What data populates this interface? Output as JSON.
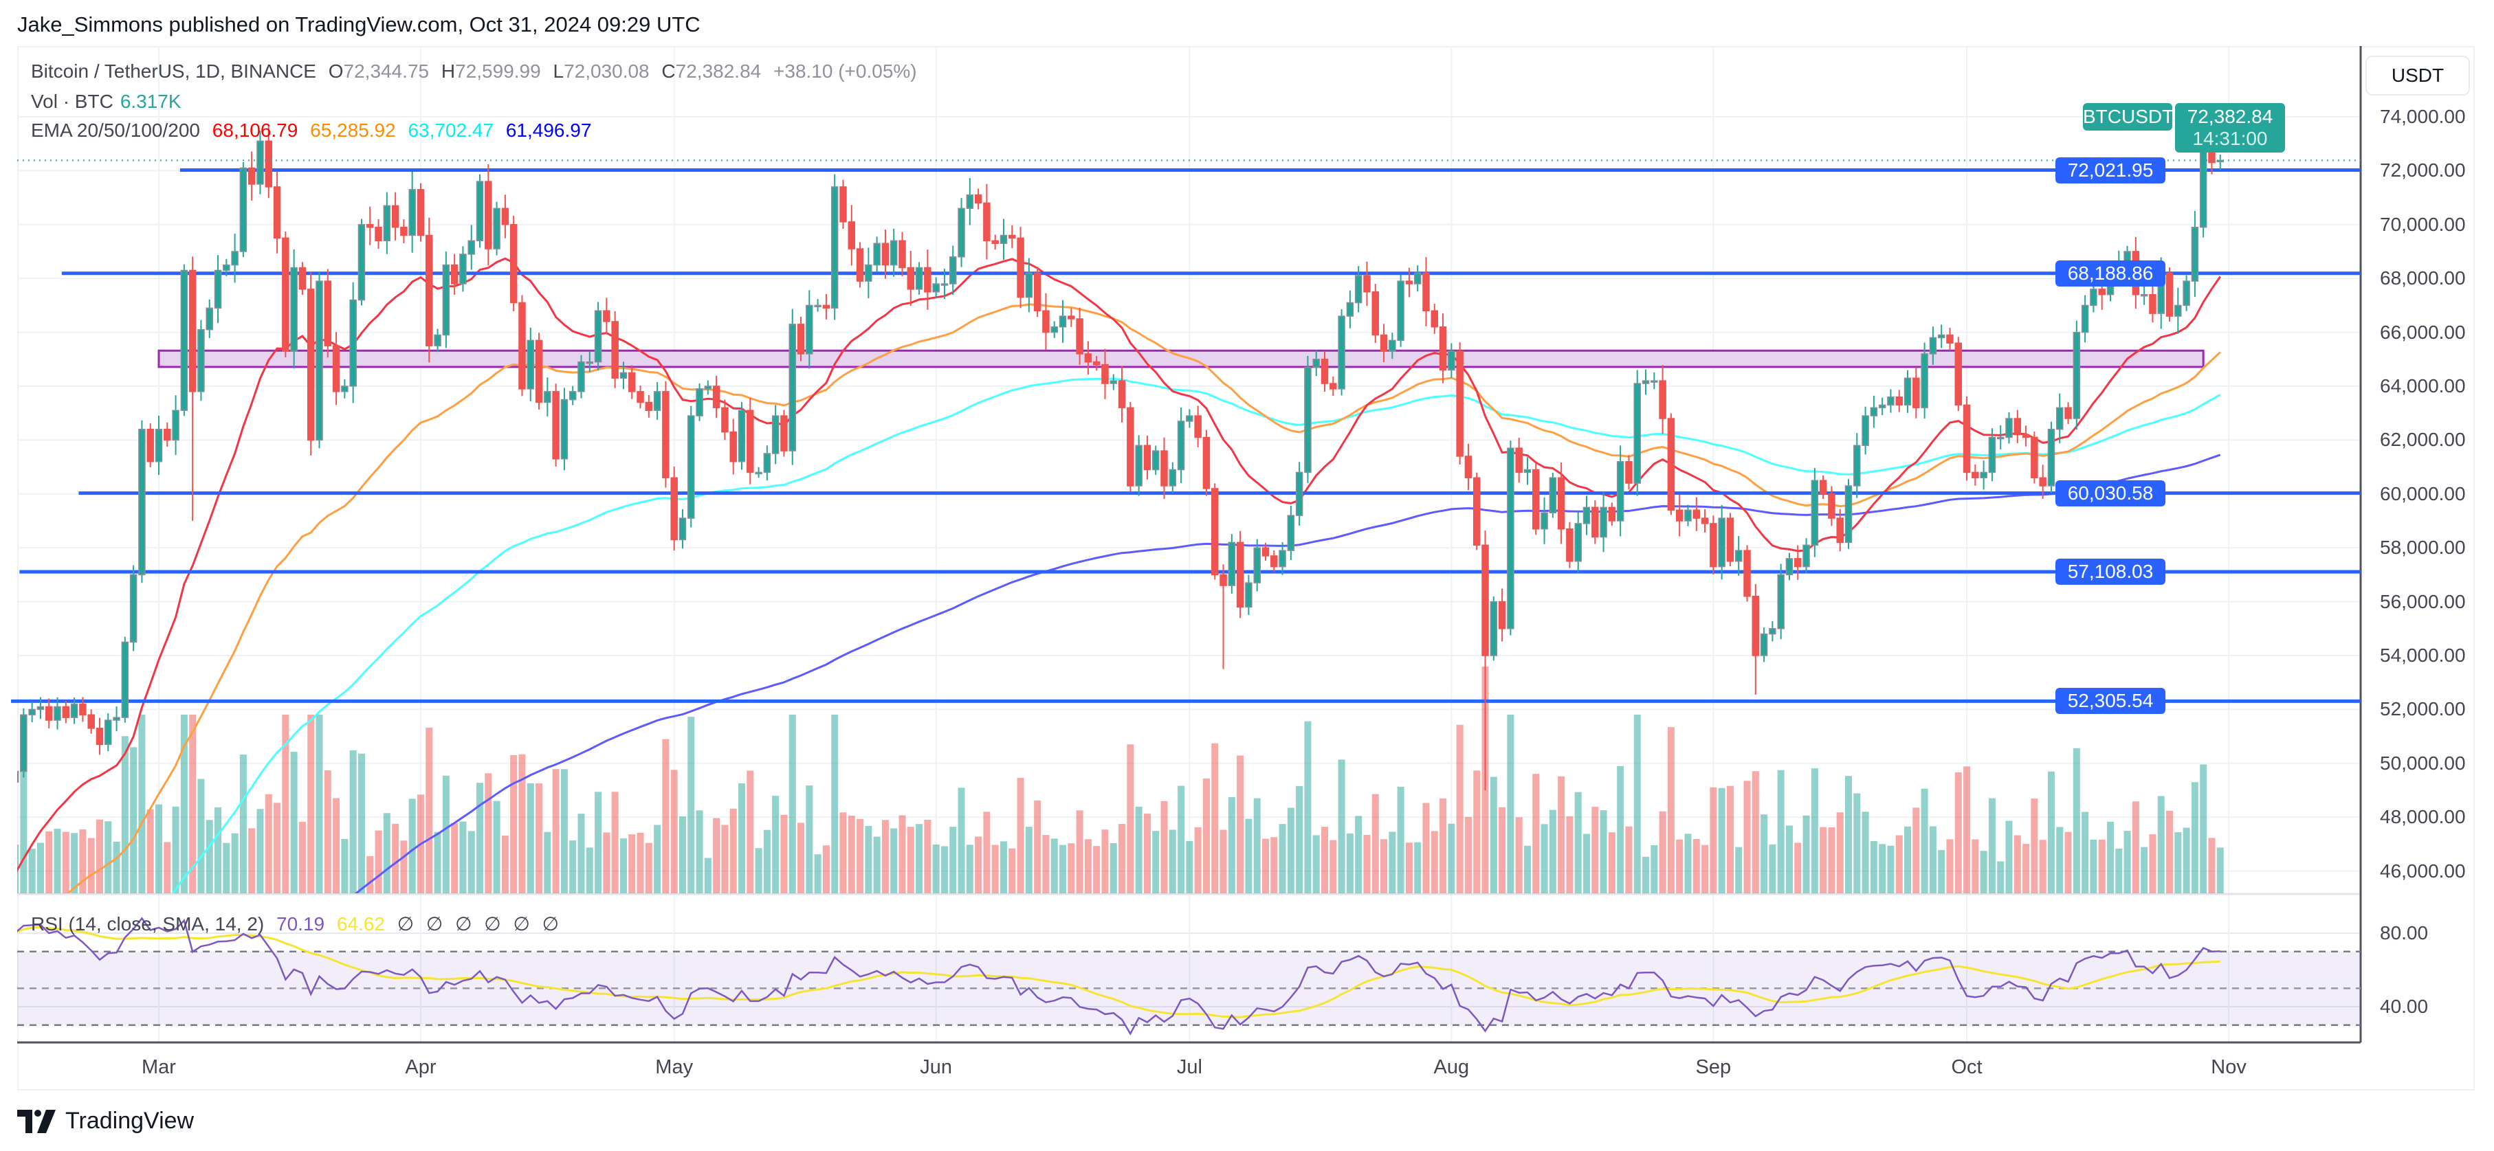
{
  "header": {
    "title": "Jake_Simmons published on TradingView.com, Oct 31, 2024 09:29 UTC"
  },
  "legend": {
    "symbol": "Bitcoin / TetherUS, 1D, BINANCE",
    "o_label": "O",
    "o": "72,344.75",
    "h_label": "H",
    "h": "72,599.99",
    "l_label": "L",
    "l": "72,030.08",
    "c_label": "C",
    "c": "72,382.84",
    "change": "+38.10 (+0.05%)",
    "vol_label": "Vol · BTC",
    "vol": "6.317K",
    "ema_label": "EMA 20/50/100/200",
    "ema20": "68,106.79",
    "ema50": "65,285.92",
    "ema100": "63,702.47",
    "ema200": "61,496.97"
  },
  "rsi_legend": {
    "label": "RSI (14, close, SMA, 14, 2)",
    "rsi": "70.19",
    "sma": "64.62",
    "empty": [
      "∅",
      "∅",
      "∅",
      "∅",
      "∅",
      "∅"
    ]
  },
  "price_axis": {
    "currency": "USDT",
    "ticks": [
      "74,000.00",
      "72,000.00",
      "70,000.00",
      "68,000.00",
      "66,000.00",
      "64,000.00",
      "62,000.00",
      "60,000.00",
      "58,000.00",
      "56,000.00",
      "54,000.00",
      "52,000.00",
      "50,000.00",
      "48,000.00",
      "46,000.00"
    ],
    "last_symbol": "BTCUSDT",
    "last_price": "72,382.84",
    "countdown": "14:31:00"
  },
  "levels": [
    {
      "label": "72,021.95",
      "value": 72021.95
    },
    {
      "label": "68,188.86",
      "value": 68188.86
    },
    {
      "label": "60,030.58",
      "value": 60030.58
    },
    {
      "label": "57,108.03",
      "value": 57108.03
    },
    {
      "label": "52,305.54",
      "value": 52305.54
    }
  ],
  "zone": {
    "low": 64715,
    "high": 65320
  },
  "rsi_axis": {
    "ticks": [
      "80.00",
      "40.00"
    ],
    "bands": [
      70,
      50,
      30
    ]
  },
  "time_axis": [
    "Mar",
    "Apr",
    "May",
    "Jun",
    "Jul",
    "Aug",
    "Sep",
    "Oct",
    "Nov"
  ],
  "footer": {
    "brand": "TradingView"
  },
  "colors": {
    "up": "#26a69a",
    "down": "#ef5350",
    "level": "#2962ff",
    "ema20": "#f23645",
    "ema50": "#ff9f43",
    "ema100": "#4dffff",
    "ema200": "#5b5bff",
    "rsi": "#7e57c2",
    "rsi_sma": "#f5e532",
    "zone": "#e5d3f0"
  },
  "chart_data": {
    "type": "candlestick",
    "title": "Bitcoin / TetherUS, 1D, BINANCE",
    "start_date": "2024-02-13",
    "ylim": [
      45000,
      74500
    ],
    "last_candle": {
      "open": 72344.75,
      "high": 72599.99,
      "low": 72030.08,
      "close": 72382.84
    },
    "closes": {
      "Feb": [
        49700,
        51800,
        52000,
        52100,
        51600,
        52100,
        51700,
        52200,
        51800,
        51300,
        50700,
        51600,
        51700,
        54500,
        57000,
        62400,
        61200
      ],
      "Mar": [
        62400,
        62000,
        63100,
        68300,
        63800,
        66100,
        66900,
        68300,
        68500,
        69000,
        72100,
        71500,
        73100,
        71400,
        69500,
        65300,
        68400,
        67600,
        62000,
        67900,
        65500,
        63800,
        64000,
        67200,
        70000,
        69900,
        69400,
        70700,
        69900,
        69600,
        71300
      ],
      "Apr": [
        69600,
        65500,
        65900,
        68500,
        67800,
        68900,
        69400,
        71600,
        69100,
        70600,
        70000,
        67100,
        63900,
        65700,
        63400,
        63800,
        61300,
        63500,
        63800,
        64900,
        64900,
        66800,
        66400,
        64300,
        64500,
        63800,
        63400,
        63100,
        63800,
        60600
      ],
      "May": [
        58300,
        59100,
        62900,
        63900,
        64000,
        63200,
        62300,
        61200,
        63100,
        60800,
        60800,
        61500,
        62900,
        61600,
        66300,
        65200,
        67000,
        67000,
        66900,
        71400,
        70100,
        69100,
        67900,
        68500,
        69300,
        68500,
        69400,
        68400,
        67600,
        68400,
        67500
      ],
      "Jun": [
        67800,
        67800,
        68800,
        70600,
        71100,
        70800,
        69400,
        69300,
        69600,
        69500,
        67300,
        68200,
        66800,
        66000,
        66200,
        66600,
        66500,
        65200,
        64900,
        64800,
        64100,
        64200,
        63200,
        60300,
        61800,
        60900,
        61600,
        60300,
        60900,
        62700
      ],
      "Jul": [
        62900,
        62100,
        60200,
        57000,
        56600,
        58200,
        55800,
        56700,
        58000,
        57700,
        57300,
        57900,
        59200,
        60800,
        64700,
        65000,
        64100,
        63900,
        66600,
        67100,
        68100,
        67500,
        65900,
        65300,
        65700,
        67900,
        67800,
        68200,
        66800,
        66200,
        64600
      ],
      "Aug": [
        65300,
        61400,
        60600,
        58100,
        54000,
        56000,
        55000,
        61700,
        60800,
        60900,
        58700,
        59300,
        60600,
        58700,
        57500,
        58900,
        59500,
        58400,
        59500,
        59000,
        61200,
        60400,
        64100,
        64200,
        64200,
        62800,
        59400,
        59000,
        59400,
        59100,
        58900
      ],
      "Sep": [
        57300,
        59100,
        57500,
        57900,
        56200,
        54000,
        54800,
        55000,
        57000,
        57600,
        57300,
        58100,
        60500,
        60000,
        59100,
        58200,
        60300,
        61800,
        62900,
        63200,
        63300,
        63600,
        63300,
        64300,
        63200,
        65200,
        65800,
        65900,
        65600,
        63300
      ],
      "Oct": [
        60800,
        60600,
        60800,
        62100,
        62100,
        62800,
        62200,
        62100,
        60600,
        60300,
        62400,
        63200,
        62800,
        66000,
        67000,
        67600,
        67400,
        68400,
        68400,
        69000,
        67400,
        67400,
        66700,
        68200,
        66600,
        67000,
        67900,
        69900,
        72700,
        72300,
        72383
      ]
    },
    "notable_lows": {
      "Mar 5": 59000,
      "Jul 5": 53500,
      "Aug 5": 49000,
      "Sep 6": 52550
    },
    "notable_highs": {
      "Mar 14": 73700,
      "Oct 29": 73600
    },
    "indicators": [
      "EMA 20",
      "EMA 50",
      "EMA 100",
      "EMA 200",
      "Volume",
      "RSI 14 + SMA 14"
    ]
  }
}
